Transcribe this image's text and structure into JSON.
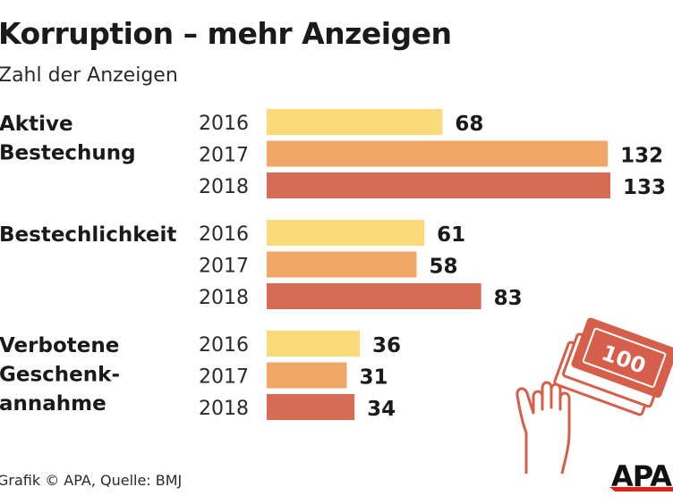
{
  "colors": {
    "year_2016": "#fcd97a",
    "year_2017": "#f3a766",
    "year_2018": "#d76c55",
    "text": "#1a1a1a",
    "illustration_stroke": "#d55f4a",
    "logo_red": "#e2231a"
  },
  "icons": [
    "money-banknotes-icon",
    "raised-hand-icon",
    "apa-logo"
  ],
  "footer": {
    "credit": "Grafik © APA, Quelle: BMJ"
  },
  "logo": {
    "text": "APA"
  },
  "illustration": {
    "banknote_value": "100"
  },
  "chart_data": {
    "type": "bar",
    "orientation": "horizontal",
    "title": "Korruption – mehr Anzeigen",
    "subtitle": "Zahl der Anzeigen",
    "xlabel": "",
    "ylabel": "",
    "grid": false,
    "legend": "none",
    "xlim": [
      0,
      133
    ],
    "groups": [
      {
        "label_lines": [
          "Aktive",
          "Bestechung"
        ],
        "years": [
          "2016",
          "2017",
          "2018"
        ],
        "values": [
          68,
          132,
          133
        ]
      },
      {
        "label_lines": [
          "Bestechlichkeit"
        ],
        "years": [
          "2016",
          "2017",
          "2018"
        ],
        "values": [
          61,
          58,
          83
        ]
      },
      {
        "label_lines": [
          "Verbotene",
          "Geschenk-",
          "annahme"
        ],
        "years": [
          "2016",
          "2017",
          "2018"
        ],
        "values": [
          36,
          31,
          34
        ]
      }
    ]
  }
}
